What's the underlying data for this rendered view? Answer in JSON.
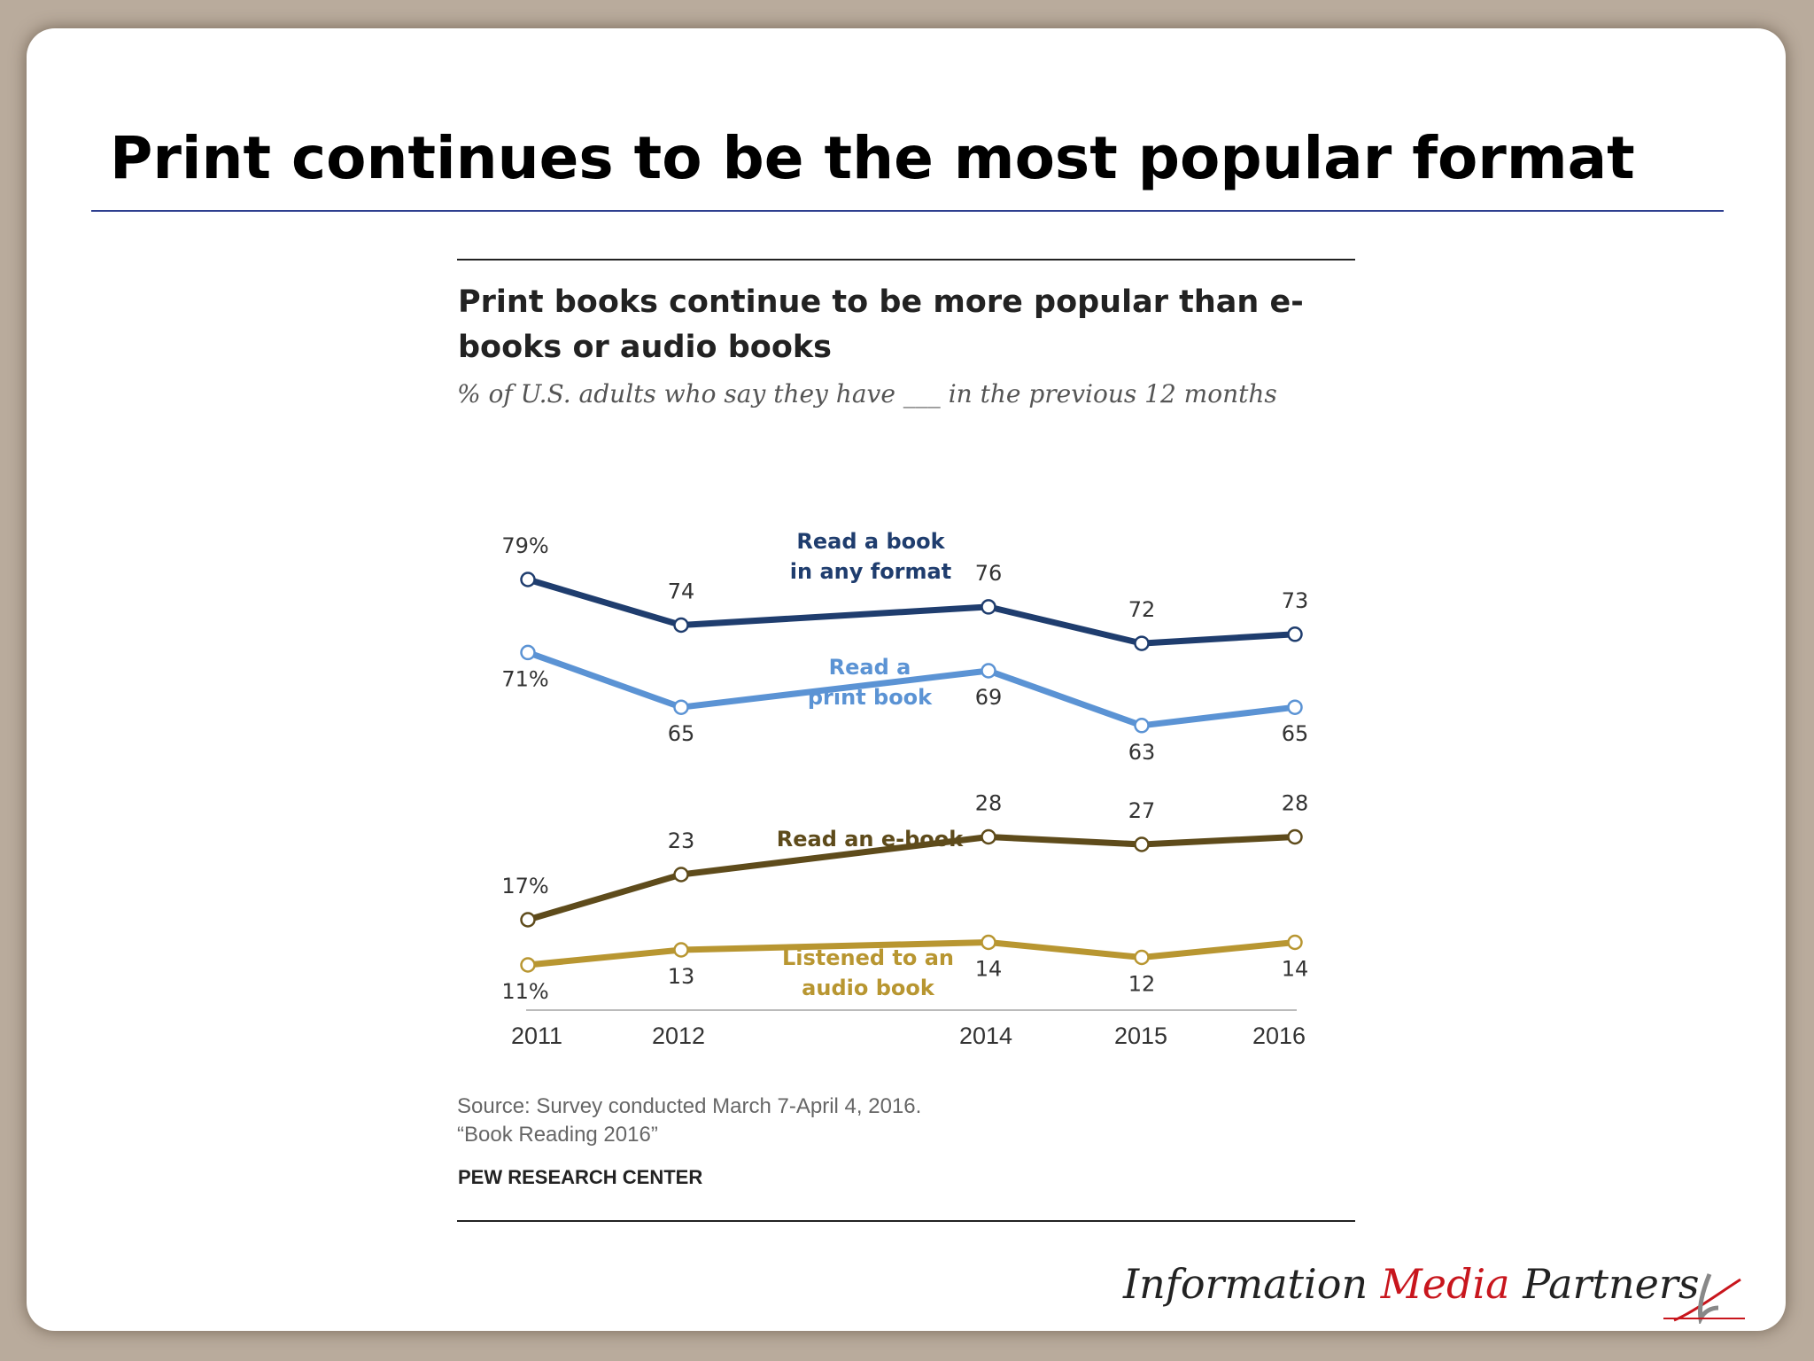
{
  "slide": {
    "title": "Print continues to be the most popular format",
    "logo": {
      "word1": "Information",
      "word2": "Media",
      "word3": "Partners",
      "accent_color": "#c8161d"
    }
  },
  "chart_data": {
    "type": "line",
    "title": "Print books continue to be more popular than e-books or audio books",
    "subtitle": "% of U.S. adults who say they have ___ in the previous 12 months",
    "x": [
      "2011",
      "2012",
      "2014",
      "2015",
      "2016"
    ],
    "series": [
      {
        "name": "Read a book in any format",
        "values": [
          79,
          74,
          76,
          72,
          73
        ],
        "color": "#1f3d6e",
        "point_labels": [
          "79%",
          "74",
          "76",
          "72",
          "73"
        ],
        "label_side": [
          "above",
          "above",
          "above",
          "above",
          "above"
        ]
      },
      {
        "name": "Read a print book",
        "values": [
          71,
          65,
          69,
          63,
          65
        ],
        "color": "#5b93d4",
        "point_labels": [
          "71%",
          "65",
          "69",
          "63",
          "65"
        ],
        "label_side": [
          "below",
          "below",
          "below",
          "below",
          "below"
        ]
      },
      {
        "name": "Read an e-book",
        "values": [
          17,
          23,
          28,
          27,
          28
        ],
        "color": "#5e4b1b",
        "point_labels": [
          "17%",
          "23",
          "28",
          "27",
          "28"
        ],
        "label_side": [
          "above",
          "above",
          "above",
          "above",
          "above"
        ]
      },
      {
        "name": "Listened to an audio book",
        "values": [
          11,
          13,
          14,
          12,
          14
        ],
        "color": "#b89631",
        "point_labels": [
          "11%",
          "13",
          "14",
          "12",
          "14"
        ],
        "label_side": [
          "below",
          "below",
          "below",
          "below",
          "below"
        ]
      }
    ],
    "series_labels": [
      {
        "lines": [
          "Read a book",
          "in any format"
        ],
        "color": "#1f3d6e"
      },
      {
        "lines": [
          "Read a",
          "print book"
        ],
        "color": "#5b93d4"
      },
      {
        "lines": [
          "Read an e-book"
        ],
        "color": "#5e4b1b"
      },
      {
        "lines": [
          "Listened to an",
          "audio book"
        ],
        "color": "#b89631"
      }
    ],
    "scale_note": "y axis is broken between about 30 and 60 percent",
    "grid": false,
    "source": "Source: Survey conducted March 7-April 4, 2016.",
    "report": "“Book Reading 2016”",
    "organization": "PEW RESEARCH CENTER"
  }
}
